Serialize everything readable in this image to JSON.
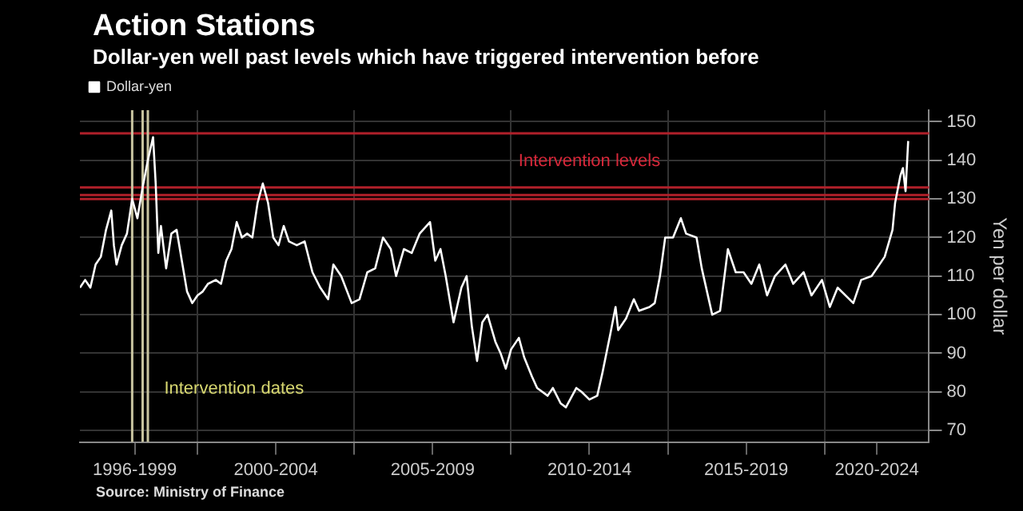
{
  "chart_data": {
    "type": "line",
    "title": "Action Stations",
    "subtitle": "Dollar-yen well past levels which have triggered intervention before",
    "ylabel": "Yen per dollar",
    "x": [
      "1996-04",
      "1996-06",
      "1996-08",
      "1996-10",
      "1996-12",
      "1997-02",
      "1997-04",
      "1997-05",
      "1997-06",
      "1997-08",
      "1997-10",
      "1997-12",
      "1998-02",
      "1998-04",
      "1998-06",
      "1998-08",
      "1998-09",
      "1998-10",
      "1998-11",
      "1999-01",
      "1999-03",
      "1999-05",
      "1999-07",
      "1999-09",
      "1999-11",
      "2000-01",
      "2000-03",
      "2000-05",
      "2000-08",
      "2000-10",
      "2000-12",
      "2001-02",
      "2001-04",
      "2001-06",
      "2001-08",
      "2001-10",
      "2001-12",
      "2002-02",
      "2002-04",
      "2002-06",
      "2002-08",
      "2002-10",
      "2002-12",
      "2003-03",
      "2003-06",
      "2003-09",
      "2003-12",
      "2004-03",
      "2004-05",
      "2004-08",
      "2004-12",
      "2005-03",
      "2005-06",
      "2005-09",
      "2005-12",
      "2006-03",
      "2006-05",
      "2006-08",
      "2006-11",
      "2007-02",
      "2007-06",
      "2007-08",
      "2007-10",
      "2007-12",
      "2008-03",
      "2008-06",
      "2008-08",
      "2008-10",
      "2008-12",
      "2009-02",
      "2009-04",
      "2009-07",
      "2009-09",
      "2009-11",
      "2010-01",
      "2010-04",
      "2010-06",
      "2010-09",
      "2010-11",
      "2011-03",
      "2011-05",
      "2011-08",
      "2011-10",
      "2012-02",
      "2012-04",
      "2012-07",
      "2012-10",
      "2012-12",
      "2013-03",
      "2013-05",
      "2013-06",
      "2013-09",
      "2013-12",
      "2014-02",
      "2014-06",
      "2014-08",
      "2014-10",
      "2014-12",
      "2015-03",
      "2015-06",
      "2015-08",
      "2015-12",
      "2016-02",
      "2016-06",
      "2016-09",
      "2016-12",
      "2017-03",
      "2017-06",
      "2017-09",
      "2017-12",
      "2018-03",
      "2018-06",
      "2018-10",
      "2019-01",
      "2019-05",
      "2019-08",
      "2019-12",
      "2020-03",
      "2020-06",
      "2020-12",
      "2021-03",
      "2021-07",
      "2021-12",
      "2022-03",
      "2022-04",
      "2022-06",
      "2022-07",
      "2022-08",
      "2022-09"
    ],
    "series": [
      {
        "name": "Dollar-yen",
        "color": "#ffffff",
        "values": [
          107,
          109,
          107,
          113,
          115,
          122,
          127,
          118,
          113,
          118,
          121,
          130,
          125,
          133,
          140,
          146,
          134,
          116,
          123,
          112,
          121,
          122,
          114,
          106,
          103,
          105,
          106,
          108,
          109,
          108,
          114,
          117,
          124,
          120,
          121,
          120,
          129,
          134,
          129,
          120,
          118,
          123,
          119,
          118,
          119,
          111,
          107,
          104,
          113,
          110,
          103,
          104,
          111,
          112,
          120,
          117,
          110,
          117,
          116,
          121,
          124,
          114,
          117,
          110,
          98,
          107,
          110,
          97,
          88,
          98,
          100,
          93,
          90,
          86,
          91,
          94,
          89,
          84,
          81,
          79,
          81,
          77,
          76,
          81,
          80,
          78,
          79,
          85,
          95,
          102,
          96,
          99,
          104,
          101,
          102,
          103,
          110,
          120,
          120,
          125,
          121,
          120,
          112,
          100,
          101,
          117,
          111,
          111,
          108,
          113,
          105,
          110,
          113,
          108,
          111,
          105,
          109,
          102,
          107,
          103,
          109,
          110,
          115,
          122,
          129,
          136,
          138,
          132,
          145
        ]
      }
    ],
    "xlim": [
      "1996-04",
      "2023-05"
    ],
    "xticks": [
      {
        "value": "2000",
        "label": null
      },
      {
        "value": "2005",
        "label": null
      },
      {
        "value": "2010",
        "label": null
      },
      {
        "value": "2015",
        "label": null
      },
      {
        "value": "2020",
        "label": null
      },
      {
        "value": "1998-01",
        "label": "1996-1999"
      },
      {
        "value": "2002-07",
        "label": "2000-2004"
      },
      {
        "value": "2007-07",
        "label": "2005-2009"
      },
      {
        "value": "2012-07",
        "label": "2010-2014"
      },
      {
        "value": "2017-07",
        "label": "2015-2019"
      },
      {
        "value": "2021-09",
        "label": "2020-2024"
      }
    ],
    "ylim": [
      67,
      153
    ],
    "yticks": [
      70,
      80,
      90,
      100,
      110,
      120,
      130,
      140,
      150
    ],
    "ref_lines": [
      {
        "axis": "y",
        "value": 147,
        "color": "#b0202a",
        "label": "Intervention levels"
      },
      {
        "axis": "y",
        "value": 133,
        "color": "#b0202a"
      },
      {
        "axis": "y",
        "value": 131,
        "color": "#b0202a"
      },
      {
        "axis": "y",
        "value": 130,
        "color": "#b0202a"
      },
      {
        "axis": "x",
        "value": "1997-12",
        "color": "#c8c4a0",
        "label": "Intervention dates"
      },
      {
        "axis": "x",
        "value": "1998-04",
        "color": "#c8c4a0"
      },
      {
        "axis": "x",
        "value": "1998-06",
        "color": "#c8c4a0"
      }
    ],
    "annotations": [
      "Source: Ministry of Finance"
    ],
    "grid": true,
    "legend": "top left",
    "marker": "none",
    "line_style": "solid"
  }
}
